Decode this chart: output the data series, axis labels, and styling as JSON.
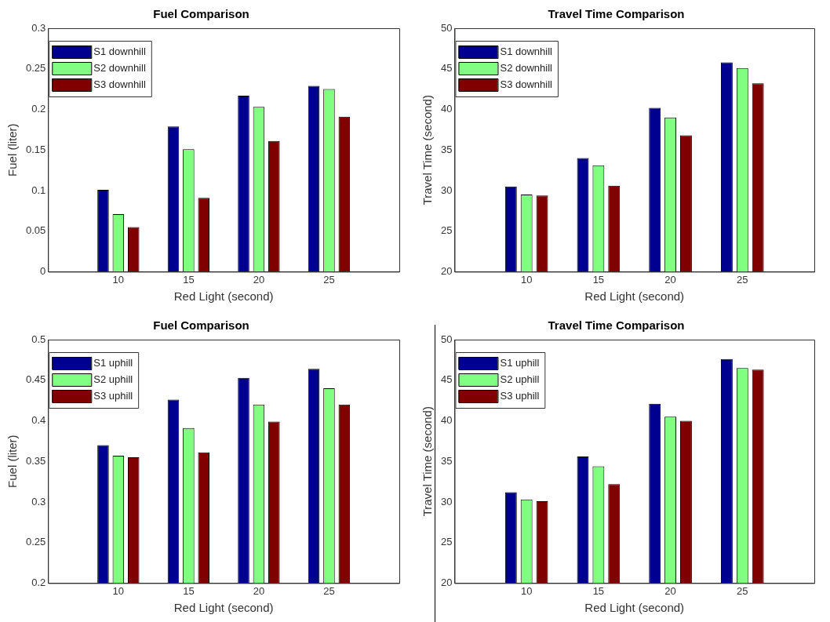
{
  "chart_data": [
    {
      "type": "bar",
      "title": "Fuel Comparison",
      "xlabel": "Red Light (second)",
      "ylabel": "Fuel (liter)",
      "categories": [
        "10",
        "15",
        "20",
        "25"
      ],
      "ylim": [
        0,
        0.3
      ],
      "yticks": [
        0,
        0.05,
        0.1,
        0.15,
        0.2,
        0.25,
        0.3
      ],
      "grid": false,
      "legend": "top left",
      "series": [
        {
          "name": "S1 downhill",
          "color": "#000090",
          "values": [
            0.101,
            0.179,
            0.217,
            0.229
          ]
        },
        {
          "name": "S2 downhill",
          "color": "#80ff80",
          "values": [
            0.071,
            0.151,
            0.203,
            0.225
          ]
        },
        {
          "name": "S3 downhill",
          "color": "#800000",
          "values": [
            0.055,
            0.091,
            0.161,
            0.191
          ]
        }
      ]
    },
    {
      "type": "bar",
      "title": "Travel Time Comparison",
      "xlabel": "Red Light (second)",
      "ylabel": "Travel Time (second)",
      "categories": [
        "10",
        "15",
        "20",
        "25"
      ],
      "ylim": [
        20,
        50
      ],
      "yticks": [
        20,
        25,
        30,
        35,
        40,
        45,
        50
      ],
      "grid": false,
      "legend": "top left",
      "series": [
        {
          "name": "S1 downhill",
          "color": "#000090",
          "values": [
            30.5,
            34.0,
            40.2,
            45.8
          ]
        },
        {
          "name": "S2 downhill",
          "color": "#80ff80",
          "values": [
            29.5,
            33.1,
            39.0,
            45.1
          ]
        },
        {
          "name": "S3 downhill",
          "color": "#800000",
          "values": [
            29.4,
            30.6,
            36.8,
            43.2
          ]
        }
      ]
    },
    {
      "type": "bar",
      "title": "Fuel Comparison",
      "xlabel": "Red Light (second)",
      "ylabel": "Fuel (liter)",
      "categories": [
        "10",
        "15",
        "20",
        "25"
      ],
      "ylim": [
        0.2,
        0.5
      ],
      "yticks": [
        0.2,
        0.25,
        0.3,
        0.35,
        0.4,
        0.45,
        0.5
      ],
      "grid": false,
      "legend": "top left",
      "series": [
        {
          "name": "S1 uphill",
          "color": "#000090",
          "values": [
            0.37,
            0.426,
            0.453,
            0.464
          ]
        },
        {
          "name": "S2 uphill",
          "color": "#80ff80",
          "values": [
            0.357,
            0.391,
            0.42,
            0.44
          ]
        },
        {
          "name": "S3 uphill",
          "color": "#800000",
          "values": [
            0.355,
            0.361,
            0.399,
            0.42
          ]
        }
      ]
    },
    {
      "type": "bar",
      "title": "Travel Time Comparison",
      "xlabel": "Red Light (second)",
      "ylabel": "Travel Time (second)",
      "categories": [
        "10",
        "15",
        "20",
        "25"
      ],
      "ylim": [
        20,
        50
      ],
      "yticks": [
        20,
        25,
        30,
        35,
        40,
        45,
        50
      ],
      "grid": false,
      "legend": "top left",
      "series": [
        {
          "name": "S1 uphill",
          "color": "#000090",
          "values": [
            31.2,
            35.6,
            42.1,
            47.6
          ]
        },
        {
          "name": "S2 uphill",
          "color": "#80ff80",
          "values": [
            30.3,
            34.4,
            40.5,
            46.5
          ]
        },
        {
          "name": "S3 uphill",
          "color": "#800000",
          "values": [
            30.1,
            32.2,
            40.0,
            46.3
          ]
        }
      ]
    }
  ]
}
